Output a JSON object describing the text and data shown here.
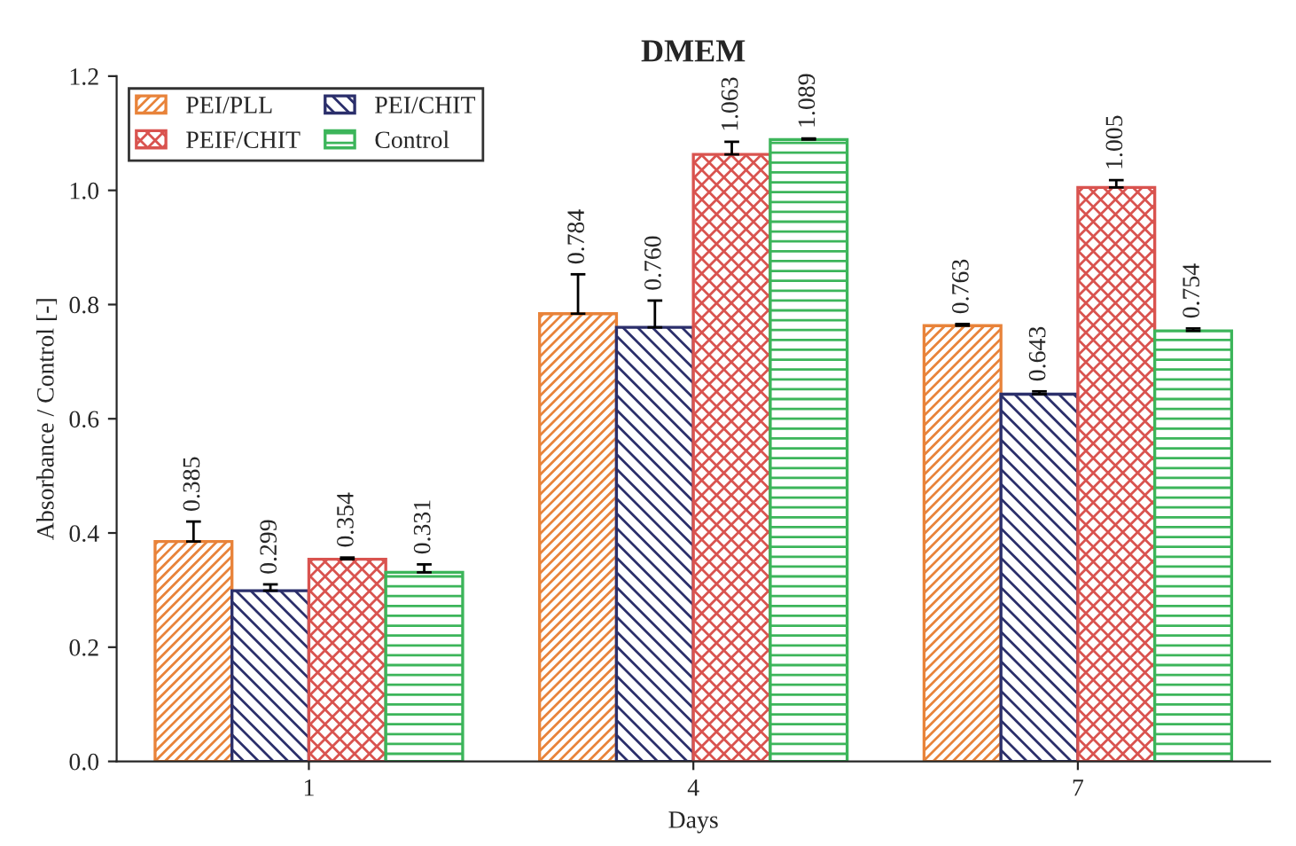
{
  "chart_data": {
    "type": "bar",
    "title": "DMEM",
    "xlabel": "Days",
    "ylabel": "Absorbance / Control [-]",
    "categories": [
      "1",
      "4",
      "7"
    ],
    "series": [
      {
        "name": "PEI/PLL",
        "color": "#e8833a",
        "values": [
          0.385,
          0.784,
          0.763
        ],
        "errors": [
          [
            0.385,
            0.42
          ],
          [
            0.784,
            0.853
          ],
          [
            0.763,
            0.766
          ]
        ],
        "value_labels": [
          "0.385",
          "0.784",
          "0.763"
        ]
      },
      {
        "name": "PEI/CHIT",
        "color": "#2b2f6b",
        "values": [
          0.299,
          0.76,
          0.643
        ],
        "errors": [
          [
            0.299,
            0.31
          ],
          [
            0.76,
            0.807
          ],
          [
            0.643,
            0.648
          ]
        ],
        "value_labels": [
          "0.299",
          "0.760",
          "0.643"
        ]
      },
      {
        "name": "PEIF/CHIT",
        "color": "#d9534f",
        "values": [
          0.354,
          1.063,
          1.005
        ],
        "errors": [
          [
            0.354,
            0.357
          ],
          [
            1.063,
            1.085
          ],
          [
            1.005,
            1.018
          ]
        ],
        "value_labels": [
          "0.354",
          "1.063",
          "1.005"
        ]
      },
      {
        "name": "Control",
        "color": "#3cb55a",
        "values": [
          0.331,
          1.089,
          0.754
        ],
        "errors": [
          [
            0.331,
            0.345
          ],
          [
            1.089,
            1.091
          ],
          [
            0.754,
            0.758
          ]
        ],
        "value_labels": [
          "0.331",
          "1.089",
          "0.754"
        ]
      }
    ],
    "ylim": [
      0,
      1.2
    ],
    "yticks": [
      {
        "value": 0,
        "label": "0.0"
      },
      {
        "value": 0.2,
        "label": "0.2"
      },
      {
        "value": 0.4,
        "label": "0.4"
      },
      {
        "value": 0.6,
        "label": "0.6"
      },
      {
        "value": 0.8,
        "label": "0.8"
      },
      {
        "value": 1.0,
        "label": "1.0"
      },
      {
        "value": 1.2,
        "label": "1.2"
      }
    ],
    "legend": "top left",
    "grid": false
  }
}
